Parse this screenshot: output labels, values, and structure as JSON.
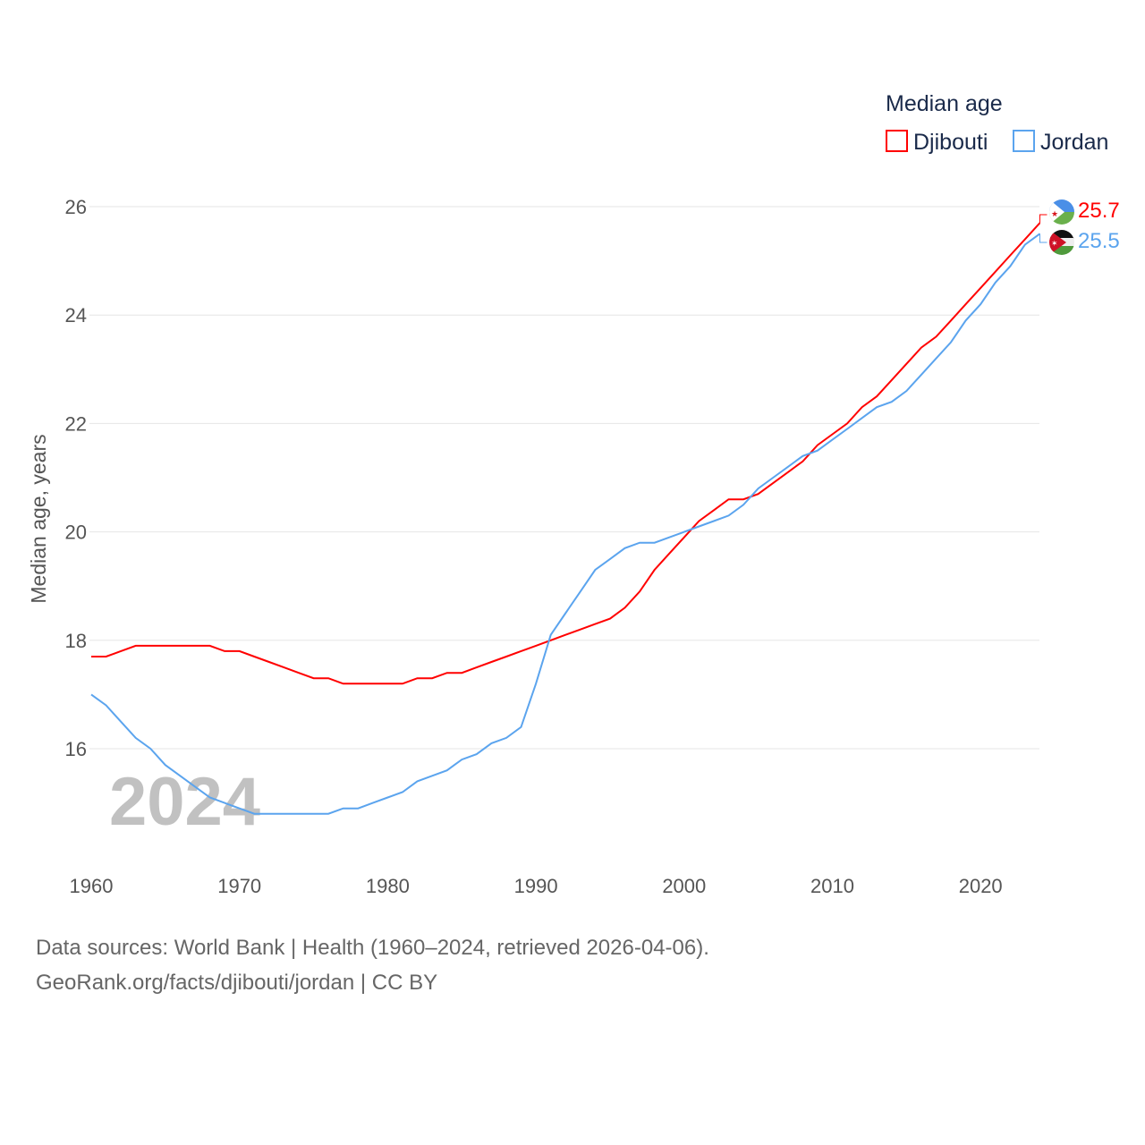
{
  "chart_data": {
    "type": "line",
    "title": "",
    "legend_title": "Median age",
    "legend_position": "top-right",
    "ylabel": "Median age, years",
    "xlabel": "",
    "xlim": [
      1960,
      2024
    ],
    "ylim": [
      14,
      26.5
    ],
    "xticks": [
      1960,
      1970,
      1980,
      1990,
      2000,
      2010,
      2020
    ],
    "yticks": [
      16,
      18,
      20,
      22,
      24,
      26
    ],
    "grid": true,
    "year_watermark": "2024",
    "x": [
      1960,
      1961,
      1962,
      1963,
      1964,
      1965,
      1966,
      1967,
      1968,
      1969,
      1970,
      1971,
      1972,
      1973,
      1974,
      1975,
      1976,
      1977,
      1978,
      1979,
      1980,
      1981,
      1982,
      1983,
      1984,
      1985,
      1986,
      1987,
      1988,
      1989,
      1990,
      1991,
      1992,
      1993,
      1994,
      1995,
      1996,
      1997,
      1998,
      1999,
      2000,
      2001,
      2002,
      2003,
      2004,
      2005,
      2006,
      2007,
      2008,
      2009,
      2010,
      2011,
      2012,
      2013,
      2014,
      2015,
      2016,
      2017,
      2018,
      2019,
      2020,
      2021,
      2022,
      2023,
      2024
    ],
    "series": [
      {
        "name": "Djibouti",
        "color": "#ff0000",
        "end_label": "25.7",
        "values": [
          17.7,
          17.7,
          17.8,
          17.9,
          17.9,
          17.9,
          17.9,
          17.9,
          17.9,
          17.8,
          17.8,
          17.7,
          17.6,
          17.5,
          17.4,
          17.3,
          17.3,
          17.2,
          17.2,
          17.2,
          17.2,
          17.2,
          17.3,
          17.3,
          17.4,
          17.4,
          17.5,
          17.6,
          17.7,
          17.8,
          17.9,
          18.0,
          18.1,
          18.2,
          18.3,
          18.4,
          18.6,
          18.9,
          19.3,
          19.6,
          19.9,
          20.2,
          20.4,
          20.6,
          20.6,
          20.7,
          20.9,
          21.1,
          21.3,
          21.6,
          21.8,
          22.0,
          22.3,
          22.5,
          22.8,
          23.1,
          23.4,
          23.6,
          23.9,
          24.2,
          24.5,
          24.8,
          25.1,
          25.4,
          25.7
        ]
      },
      {
        "name": "Jordan",
        "color": "#5ba4ee",
        "end_label": "25.5",
        "values": [
          17.0,
          16.8,
          16.5,
          16.2,
          16.0,
          15.7,
          15.5,
          15.3,
          15.1,
          15.0,
          14.9,
          14.8,
          14.8,
          14.8,
          14.8,
          14.8,
          14.8,
          14.9,
          14.9,
          15.0,
          15.1,
          15.2,
          15.4,
          15.5,
          15.6,
          15.8,
          15.9,
          16.1,
          16.2,
          16.4,
          17.2,
          18.1,
          18.5,
          18.9,
          19.3,
          19.5,
          19.7,
          19.8,
          19.8,
          19.9,
          20.0,
          20.1,
          20.2,
          20.3,
          20.5,
          20.8,
          21.0,
          21.2,
          21.4,
          21.5,
          21.7,
          21.9,
          22.1,
          22.3,
          22.4,
          22.6,
          22.9,
          23.2,
          23.5,
          23.9,
          24.2,
          24.6,
          24.9,
          25.3,
          25.5
        ]
      }
    ]
  },
  "footer": {
    "line1": "Data sources: World Bank | Health (1960–2024, retrieved 2026-04-06).",
    "line2": "GeoRank.org/facts/djibouti/jordan | CC BY"
  }
}
